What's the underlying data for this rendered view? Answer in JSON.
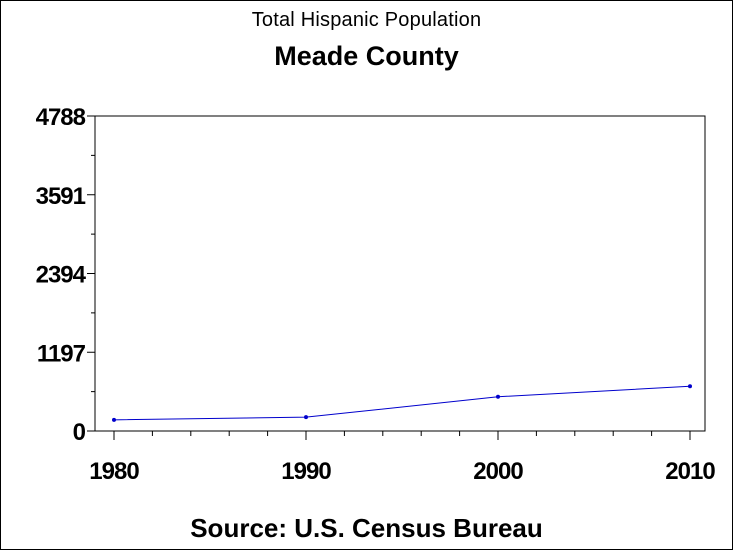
{
  "title": "Total Hispanic Population",
  "subtitle": "Meade County",
  "source": "Source: U.S. Census Bureau",
  "colors": {
    "line": "#0000cc",
    "axis": "#000000",
    "background": "#ffffff"
  },
  "chart_data": {
    "type": "line",
    "title": "Total Hispanic Population",
    "subtitle": "Meade County",
    "xlabel": "",
    "ylabel": "",
    "x": [
      1980,
      1990,
      2000,
      2010
    ],
    "series": [
      {
        "values": [
          170,
          210,
          520,
          680
        ]
      }
    ],
    "xlim": [
      1980,
      2010
    ],
    "ylim": [
      0,
      4788
    ],
    "yticks": [
      0,
      1197,
      2394,
      3591,
      4788
    ],
    "ytick_labels": [
      "0",
      "1197",
      "2394",
      "3591",
      "4788"
    ],
    "xticks": [
      1980,
      1990,
      2000,
      2010
    ],
    "xtick_labels": [
      "1980",
      "1990",
      "2000",
      "2010"
    ],
    "grid": false,
    "legend": "none"
  }
}
